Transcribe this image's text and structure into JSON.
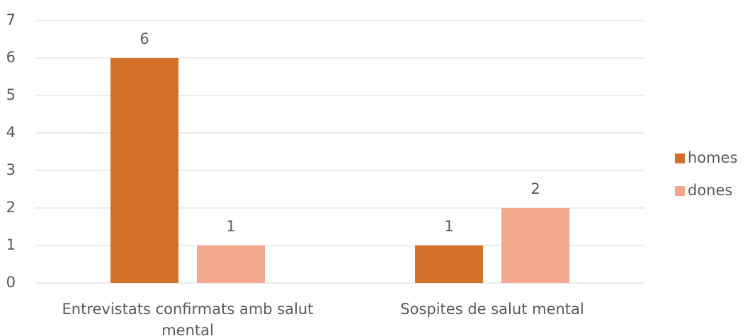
{
  "chart_data": {
    "type": "bar",
    "categories": [
      "Entrevistats confirmats amb salut mental",
      "Sospites de salut mental"
    ],
    "series": [
      {
        "name": "homes",
        "color": "#d4702a",
        "values": [
          6,
          1
        ]
      },
      {
        "name": "dones",
        "color": "#f2a88a",
        "values": [
          1,
          2
        ]
      }
    ],
    "ylim": [
      0,
      7
    ],
    "yticks": [
      0,
      1,
      2,
      3,
      4,
      5,
      6,
      7
    ],
    "grid": true,
    "legend": "right"
  }
}
